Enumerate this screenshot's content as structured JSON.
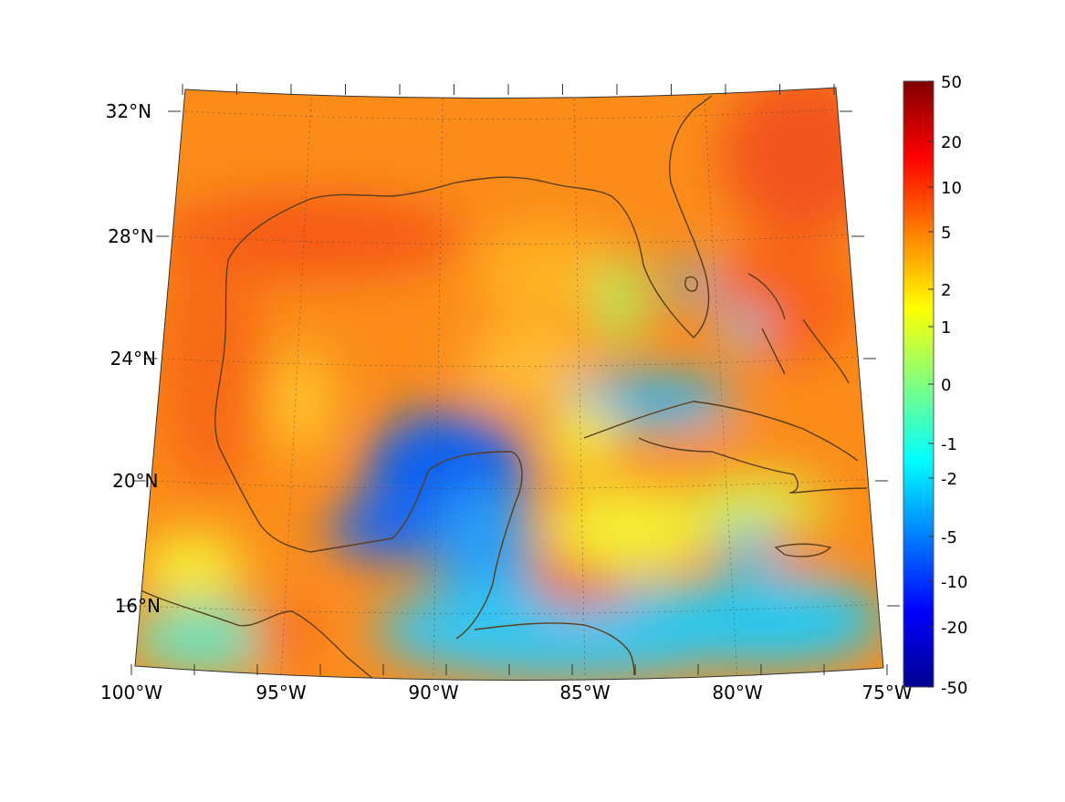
{
  "map": {
    "lat_labels": [
      "32°N",
      "28°N",
      "24°N",
      "20°N",
      "16°N"
    ],
    "lat_values": [
      32,
      28,
      24,
      20,
      16
    ],
    "lon_labels": [
      "100°W",
      "95°W",
      "90°W",
      "85°W",
      "80°W",
      "75°W"
    ],
    "lon_values": [
      -100,
      -95,
      -90,
      -85,
      -80,
      -75
    ],
    "lon_range": [
      -100,
      -75
    ],
    "lat_range": [
      14,
      33
    ],
    "projection": "conic",
    "grid": "dotted",
    "coastline_color": "#5a3e1b"
  },
  "colorbar": {
    "tick_labels": [
      "50",
      "20",
      "10",
      "5",
      "2",
      "1",
      "0",
      "-1",
      "-2",
      "-5",
      "-10",
      "-20",
      "-50"
    ],
    "colormap": "jet",
    "range": [
      -50,
      50
    ],
    "scale": "symmetric-log"
  }
}
